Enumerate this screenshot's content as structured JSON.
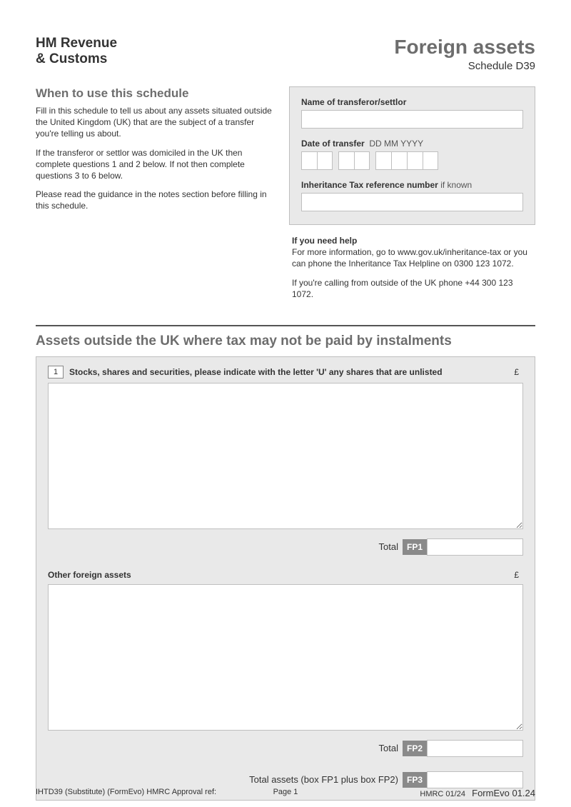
{
  "header": {
    "logo_line1": "HM Revenue",
    "logo_line2": "& Customs",
    "title": "Foreign assets",
    "schedule": "Schedule D39"
  },
  "intro": {
    "heading": "When to use this schedule",
    "p1": "Fill in this schedule to tell us about any assets situated outside the United Kingdom (UK) that are the subject of a transfer you're telling us about.",
    "p2": "If the transferor or settlor was domiciled in the UK then complete questions 1 and 2 below. If not then complete questions 3 to 6 below.",
    "p3": "Please read the guidance in the notes section before filling in this schedule."
  },
  "box": {
    "name_label": "Name of transferor/settlor",
    "date_label": "Date of transfer",
    "date_hint": "DD MM YYYY",
    "ref_label": "Inheritance Tax reference number",
    "ref_hint": "if known"
  },
  "help": {
    "title": "If you need help",
    "p1": "For more information, go to www.gov.uk/inheritance-tax or you can phone the Inheritance Tax Helpline on 0300 123 1072.",
    "p2": "If you're calling from outside of the UK phone +44 300 123 1072."
  },
  "section": {
    "title": "Assets outside the UK where tax may not be paid by instalments",
    "q1_num": "1",
    "q1_label": "Stocks, shares and securities, please indicate with the letter 'U' any shares that are unlisted",
    "currency": "£",
    "total": "Total",
    "fp1": "FP1",
    "other_label": "Other foreign assets",
    "fp2": "FP2",
    "total_assets": "Total assets (box FP1 plus box FP2)",
    "fp3": "FP3"
  },
  "footer": {
    "left": "IHTD39  (Substitute) (FormEvo) HMRC Approval ref:",
    "mid": "Page 1",
    "right_a": "HMRC 01/24",
    "right_b": "FormEvo 01.24"
  },
  "colors": {
    "grey_bg": "#e9e9e9",
    "border": "#bfbfbf",
    "heading_grey": "#6d6d6d",
    "tag_bg": "#8a8a8a"
  }
}
